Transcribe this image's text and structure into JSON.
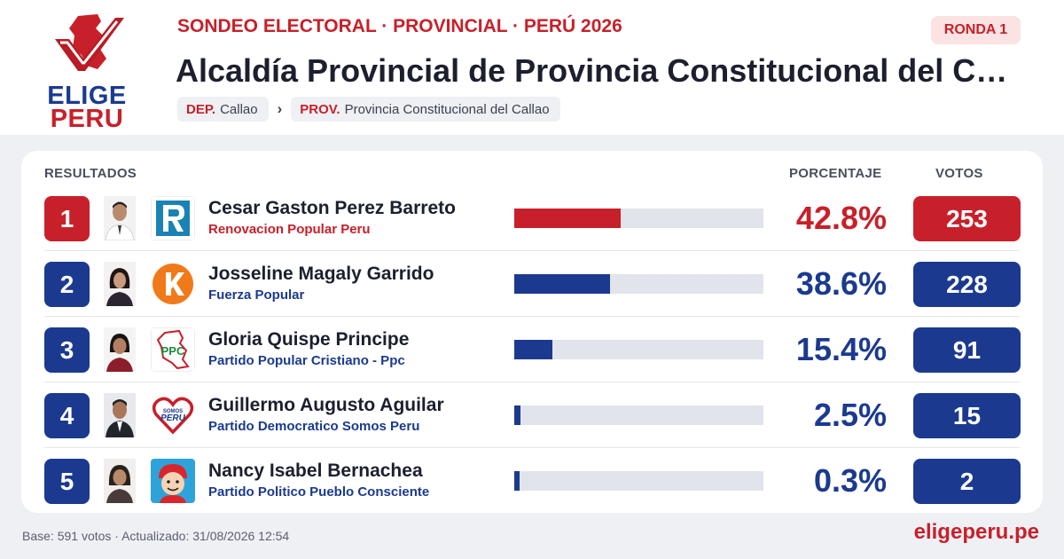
{
  "brand": {
    "line1": "ELIGE",
    "line2": "PERU",
    "site": "eligeperu.pe",
    "colors": {
      "red": "#c8202a",
      "blue": "#1b3a8f"
    }
  },
  "header": {
    "kicker": "SONDEO ELECTORAL · PROVINCIAL · PERÚ 2026",
    "round": "RONDA 1",
    "title": "Alcaldía Provincial de Provincia Constitucional del Callao",
    "breadcrumb": [
      {
        "key": "DEP.",
        "value": "Callao"
      },
      {
        "key": "PROV.",
        "value": "Provincia Constitucional del Callao"
      }
    ],
    "breadcrumb_separator": "›"
  },
  "results": {
    "headers": {
      "results": "RESULTADOS",
      "percentage": "PORCENTAJE",
      "votes": "VOTOS"
    },
    "rows": [
      {
        "rank": "1",
        "name": "Cesar Gaston Perez Barreto",
        "party": "Renovacion Popular Peru",
        "pct_label": "42.8%",
        "pct": 42.8,
        "votes": "253",
        "accent": "#c8202a",
        "party_logo_icon": "renovacion-popular-logo"
      },
      {
        "rank": "2",
        "name": "Josseline Magaly Garrido",
        "party": "Fuerza Popular",
        "pct_label": "38.6%",
        "pct": 38.6,
        "votes": "228",
        "accent": "#1b3a8f",
        "party_logo_icon": "fuerza-popular-logo"
      },
      {
        "rank": "3",
        "name": "Gloria Quispe Principe",
        "party": "Partido Popular Cristiano - Ppc",
        "pct_label": "15.4%",
        "pct": 15.4,
        "votes": "91",
        "accent": "#1b3a8f",
        "party_logo_icon": "ppc-logo"
      },
      {
        "rank": "4",
        "name": "Guillermo Augusto Aguilar",
        "party": "Partido Democratico Somos Peru",
        "pct_label": "2.5%",
        "pct": 2.5,
        "votes": "15",
        "accent": "#1b3a8f",
        "party_logo_icon": "somos-peru-logo"
      },
      {
        "rank": "5",
        "name": "Nancy Isabel Bernachea",
        "party": "Partido Politico Pueblo Consciente",
        "pct_label": "0.3%",
        "pct": 0.3,
        "votes": "2",
        "accent": "#1b3a8f",
        "party_logo_icon": "pueblo-consciente-logo"
      }
    ]
  },
  "footer": {
    "note": "Base: 591 votos · Actualizado: 31/08/2026 12:54"
  }
}
